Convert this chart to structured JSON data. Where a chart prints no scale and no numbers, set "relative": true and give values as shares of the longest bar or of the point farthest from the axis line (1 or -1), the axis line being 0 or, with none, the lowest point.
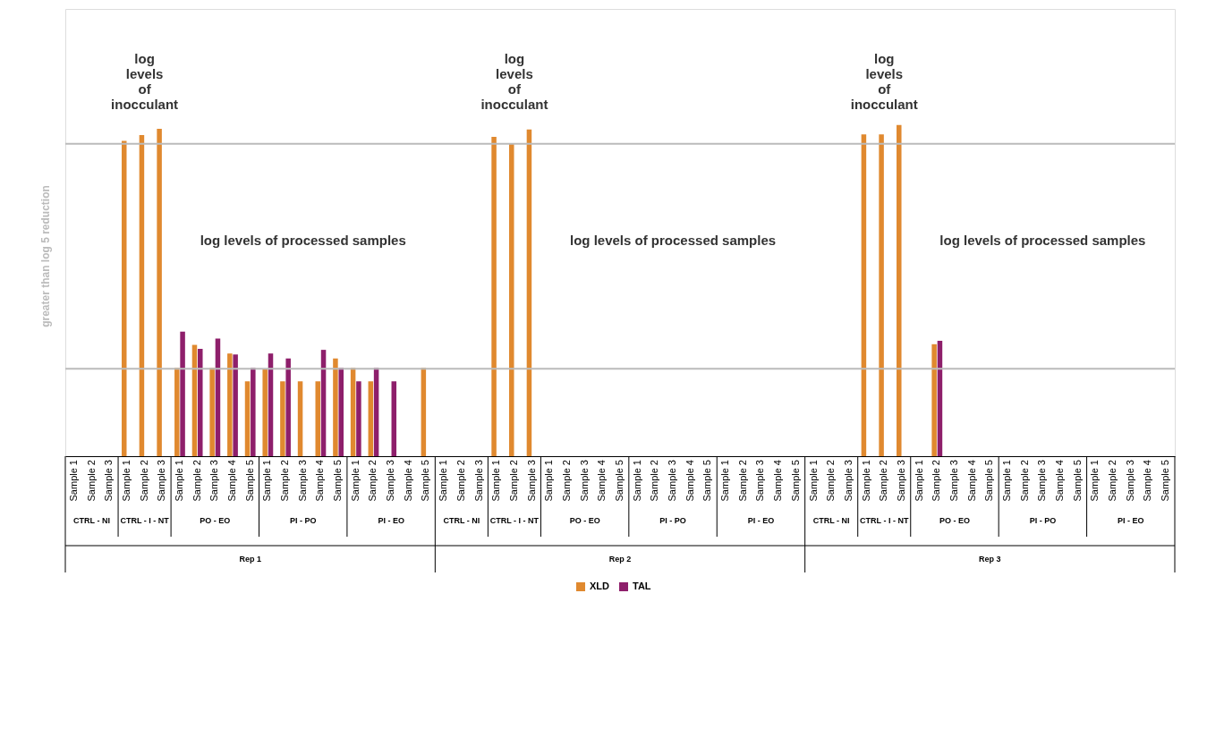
{
  "chart_data": {
    "type": "bar",
    "relative": true,
    "legend": "bottom",
    "categories": [
      "Sample 1",
      "Sample 2",
      "Sample 3",
      "Sample 1",
      "Sample 2",
      "Sample 3",
      "Sample 1",
      "Sample 2",
      "Sample 3",
      "Sample 4",
      "Sample 5",
      "Sample 1",
      "Sample 2",
      "Sample 3",
      "Sample 4",
      "Sample 5",
      "Sample 1",
      "Sample 2",
      "Sample 3",
      "Sample 4",
      "Sample 5",
      "Sample 1",
      "Sample 2",
      "Sample 3",
      "Sample 1",
      "Sample 2",
      "Sample 3",
      "Sample 1",
      "Sample 2",
      "Sample 3",
      "Sample 4",
      "Sample 5",
      "Sample 1",
      "Sample 2",
      "Sample 3",
      "Sample 4",
      "Sample 5",
      "Sample 1",
      "Sample 2",
      "Sample 3",
      "Sample 4",
      "Sample 5",
      "Sample 1",
      "Sample 2",
      "Sample 3",
      "Sample 1",
      "Sample 2",
      "Sample 3",
      "Sample 1",
      "Sample 2",
      "Sample 3",
      "Sample 4",
      "Sample 5",
      "Sample 1",
      "Sample 2",
      "Sample 3",
      "Sample 4",
      "Sample 5",
      "Sample 1",
      "Sample 2",
      "Sample 3",
      "Sample 4",
      "Sample 5"
    ],
    "series": [
      {
        "name": "XLD",
        "color": "#e0892f",
        "values": [
          null,
          null,
          null,
          0.952,
          0.969,
          0.988,
          0.267,
          0.336,
          0.267,
          0.31,
          0.226,
          0.264,
          0.226,
          0.226,
          0.226,
          0.295,
          0.267,
          0.226,
          null,
          null,
          0.267,
          null,
          null,
          null,
          0.964,
          0.943,
          0.986,
          null,
          null,
          null,
          null,
          null,
          null,
          null,
          null,
          null,
          null,
          null,
          null,
          null,
          null,
          null,
          null,
          null,
          null,
          0.971,
          0.971,
          1,
          null,
          0.338,
          null,
          null,
          null,
          null,
          null,
          null,
          null,
          null,
          null,
          null,
          null,
          null,
          null
        ]
      },
      {
        "name": "TAL",
        "color": "#8e1f6b",
        "values": [
          null,
          null,
          null,
          null,
          null,
          null,
          0.376,
          0.324,
          0.355,
          0.307,
          0.267,
          0.31,
          0.295,
          null,
          0.321,
          0.267,
          0.226,
          0.267,
          0.226,
          null,
          null,
          null,
          null,
          null,
          null,
          null,
          null,
          null,
          null,
          null,
          null,
          null,
          null,
          null,
          null,
          null,
          null,
          null,
          null,
          null,
          null,
          null,
          null,
          null,
          null,
          null,
          null,
          null,
          null,
          0.348,
          null,
          null,
          null,
          null,
          null,
          null,
          null,
          null,
          null,
          null,
          null,
          null,
          null
        ]
      }
    ],
    "ref_lines": [
      {
        "axis": "y",
        "value": 0.943,
        "color": "#bbbbbb"
      },
      {
        "axis": "y",
        "value": 0.264,
        "color": "#bbbbbb"
      }
    ],
    "annotations": [
      "CTRL - NI",
      "CTRL - I - NT",
      "PO - EO",
      "PI - PO",
      "PI - EO",
      "CTRL - NI",
      "CTRL - I - NT",
      "PO - EO",
      "PI - PO",
      "PI - EO",
      "CTRL - NI",
      "CTRL - I - NT",
      "PO - EO",
      "PI - PO",
      "PI - EO",
      "Rep 1",
      "Rep 2",
      "Rep 3",
      "greater than log 5 reduction",
      "log levels of inocculant",
      "log levels of inocculant",
      "log levels of inocculant",
      "log levels of processed samples",
      "log levels of processed samples",
      "log levels of processed samples"
    ]
  }
}
